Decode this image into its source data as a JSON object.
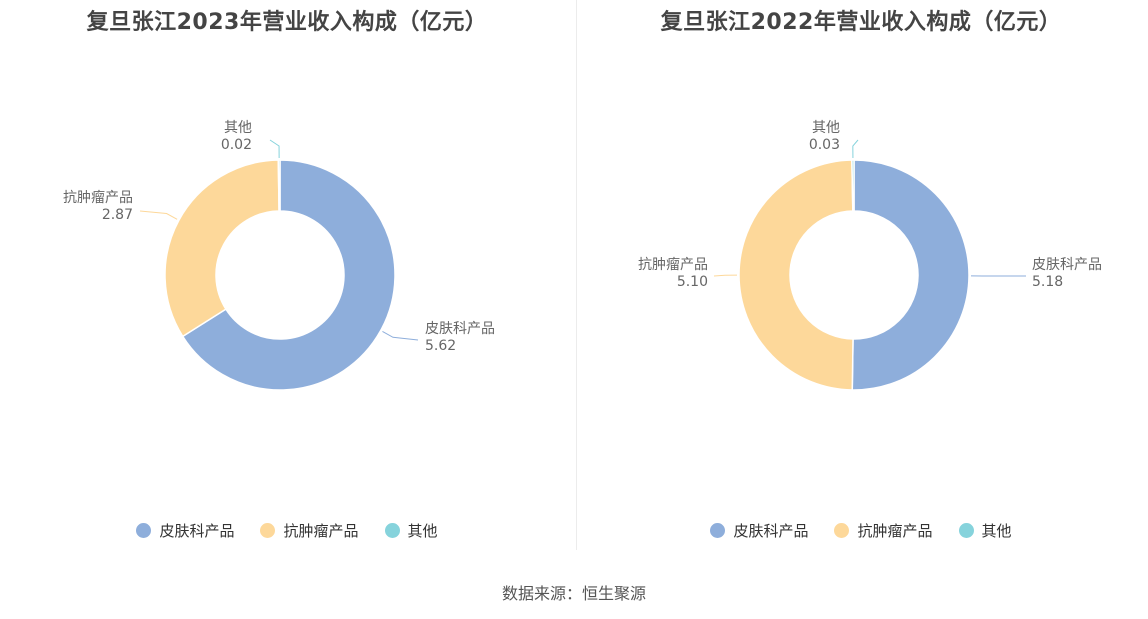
{
  "source": "数据来源：恒生聚源",
  "colors": {
    "skin": "#8eaedb",
    "tumor": "#fdd89a",
    "other": "#86d3dc"
  },
  "chart_data": [
    {
      "type": "pie",
      "title": "复旦张江2023年营业收入构成（亿元）",
      "categories": [
        "皮肤科产品",
        "抗肿瘤产品",
        "其他"
      ],
      "values": [
        5.62,
        2.87,
        0.02
      ],
      "value_labels": [
        "5.62",
        "2.87",
        "0.02"
      ],
      "legend": "bottom",
      "donut": true
    },
    {
      "type": "pie",
      "title": "复旦张江2022年营业收入构成（亿元）",
      "categories": [
        "皮肤科产品",
        "抗肿瘤产品",
        "其他"
      ],
      "values": [
        5.18,
        5.1,
        0.03
      ],
      "value_labels": [
        "5.18",
        "5.10",
        "0.03"
      ],
      "legend": "bottom",
      "donut": true
    }
  ]
}
